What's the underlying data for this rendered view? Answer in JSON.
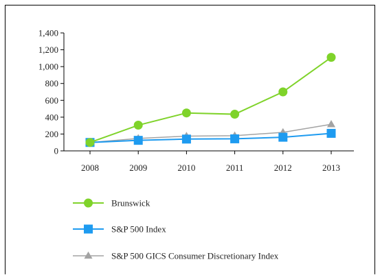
{
  "chart_data": {
    "type": "line",
    "categories": [
      "2008",
      "2009",
      "2010",
      "2011",
      "2012",
      "2013"
    ],
    "ylim": [
      0,
      1400
    ],
    "yticks": [
      0,
      200,
      400,
      600,
      800,
      1000,
      1200,
      1400
    ],
    "ytick_labels": [
      "0",
      "200",
      "400",
      "600",
      "800",
      "1,000",
      "1,200",
      "1,400"
    ],
    "grid": false,
    "legend_position": "bottom",
    "series": [
      {
        "name": "Brunswick",
        "values": [
          100,
          305,
          450,
          435,
          700,
          1110
        ],
        "color": "#7fd32a",
        "marker": "circle"
      },
      {
        "name": "S&P 500 Index",
        "values": [
          100,
          125,
          140,
          143,
          162,
          208
        ],
        "color": "#1e9bf0",
        "marker": "square"
      },
      {
        "name": "S&P 500 GICS Consumer Discretionary Index",
        "values": [
          100,
          148,
          175,
          180,
          220,
          315
        ],
        "color": "#a3a3a3",
        "marker": "triangle"
      }
    ]
  }
}
